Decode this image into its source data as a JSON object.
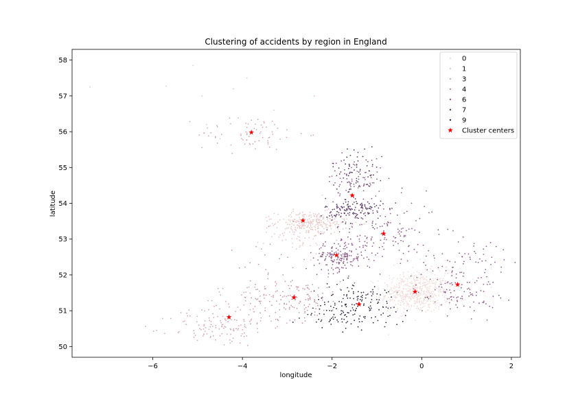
{
  "chart_data": {
    "type": "scatter",
    "title": "Clustering of accidents by region in England",
    "xlabel": "longitude",
    "ylabel": "latitude",
    "xlim": [
      -7.8,
      2.2
    ],
    "ylim": [
      49.7,
      58.3
    ],
    "xticks": [
      -6,
      -4,
      -2,
      0,
      2
    ],
    "yticks": [
      50,
      51,
      52,
      53,
      54,
      55,
      56,
      57,
      58
    ],
    "grid": false,
    "legend_position": "top-right",
    "legend_entries": [
      "0",
      "1",
      "3",
      "4",
      "6",
      "7",
      "9",
      "Cluster centers"
    ],
    "series": [
      {
        "name": "0",
        "color": "#f2dedb",
        "regions": [
          {
            "cx": -0.15,
            "cy": 51.5,
            "sx": 0.38,
            "sy": 0.28,
            "n": 520
          },
          {
            "cx": 0.2,
            "cy": 51.7,
            "sx": 0.45,
            "sy": 0.35,
            "n": 90
          }
        ]
      },
      {
        "name": "1",
        "color": "#e6c7c3",
        "regions": [
          {
            "cx": -2.45,
            "cy": 53.45,
            "sx": 0.4,
            "sy": 0.16,
            "n": 230
          },
          {
            "cx": -2.8,
            "cy": 53.2,
            "sx": 0.35,
            "sy": 0.3,
            "n": 60
          }
        ]
      },
      {
        "name": "3",
        "color": "#d4a8ad",
        "regions": [
          {
            "cx": -3.8,
            "cy": 55.95,
            "sx": 0.6,
            "sy": 0.25,
            "n": 70
          },
          {
            "cx": -4.6,
            "cy": 50.5,
            "sx": 0.5,
            "sy": 0.25,
            "n": 90
          },
          {
            "cx": -3.9,
            "cy": 51.0,
            "sx": 0.55,
            "sy": 0.4,
            "n": 70
          }
        ]
      },
      {
        "name": "4",
        "color": "#c295a7",
        "regions": [
          {
            "cx": -2.8,
            "cy": 51.35,
            "sx": 0.5,
            "sy": 0.3,
            "n": 130
          },
          {
            "cx": -3.3,
            "cy": 52.2,
            "sx": 0.4,
            "sy": 0.5,
            "n": 30
          }
        ]
      },
      {
        "name": "6",
        "color": "#8d5f8a",
        "regions": [
          {
            "cx": -1.85,
            "cy": 52.5,
            "sx": 0.28,
            "sy": 0.2,
            "n": 160
          },
          {
            "cx": -0.8,
            "cy": 53.1,
            "sx": 0.6,
            "sy": 0.5,
            "n": 150
          },
          {
            "cx": -1.5,
            "cy": 54.7,
            "sx": 0.3,
            "sy": 0.3,
            "n": 80
          },
          {
            "cx": 0.8,
            "cy": 51.6,
            "sx": 0.45,
            "sy": 0.35,
            "n": 110
          },
          {
            "cx": 1.2,
            "cy": 52.5,
            "sx": 0.4,
            "sy": 0.25,
            "n": 40
          }
        ]
      },
      {
        "name": "7",
        "color": "#5a3a63",
        "regions": [
          {
            "cx": -1.5,
            "cy": 53.8,
            "sx": 0.32,
            "sy": 0.18,
            "n": 140
          },
          {
            "cx": -1.5,
            "cy": 54.9,
            "sx": 0.25,
            "sy": 0.35,
            "n": 60
          }
        ]
      },
      {
        "name": "9",
        "color": "#2f2440",
        "regions": [
          {
            "cx": -1.4,
            "cy": 51.2,
            "sx": 0.55,
            "sy": 0.3,
            "n": 140
          },
          {
            "cx": -1.8,
            "cy": 50.85,
            "sx": 0.4,
            "sy": 0.15,
            "n": 40
          }
        ]
      }
    ],
    "cluster_centers": {
      "name": "Cluster centers",
      "color": "#ff0000",
      "x": [
        -3.8,
        -2.65,
        -1.55,
        -0.85,
        -1.9,
        -0.15,
        0.8,
        -2.85,
        -1.4,
        -4.3
      ],
      "y": [
        55.98,
        53.52,
        54.22,
        53.15,
        52.55,
        51.53,
        51.73,
        51.37,
        51.18,
        50.82
      ]
    },
    "outliers": {
      "color": "#e6c7c3",
      "x": [
        -5.1,
        -7.4,
        -5.7,
        -3.9,
        -4.9,
        -4.5,
        -2.4,
        -4.8,
        -3.3,
        -4.2
      ],
      "y": [
        57.85,
        57.25,
        57.27,
        57.5,
        57.0,
        55.8,
        57.0,
        56.2,
        56.6,
        57.2
      ]
    }
  }
}
